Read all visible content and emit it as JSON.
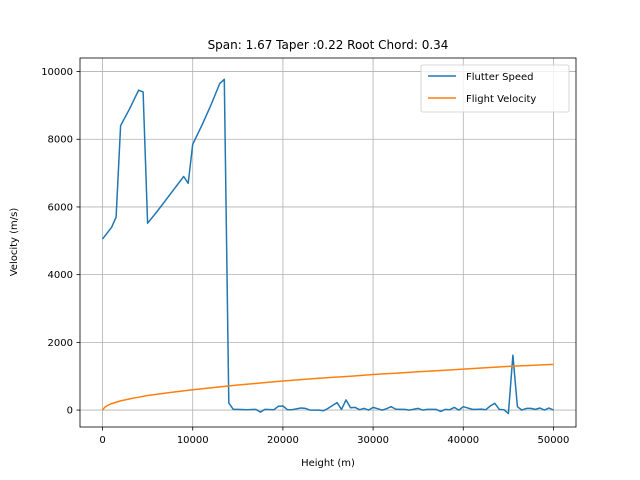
{
  "chart_data": {
    "type": "line",
    "title": "Span: 1.67 Taper :0.22 Root Chord: 0.34",
    "xlabel": "Height (m)",
    "ylabel": "Velocity (m/s)",
    "xlim": [
      -2500,
      52500
    ],
    "ylim": [
      -500,
      10400
    ],
    "xticks": [
      0,
      10000,
      20000,
      30000,
      40000,
      50000
    ],
    "yticks": [
      0,
      2000,
      4000,
      6000,
      8000,
      10000
    ],
    "grid": true,
    "legend_position": "top-right",
    "series": [
      {
        "name": "Flutter Speed",
        "color": "#1f77b4",
        "x": [
          0,
          1000,
          1500,
          2000,
          3000,
          4000,
          4500,
          5000,
          6000,
          7000,
          8000,
          9000,
          9500,
          10000,
          11000,
          12000,
          13000,
          13500,
          14000,
          14500,
          15000,
          16000,
          17000,
          17500,
          18000,
          19000,
          19500,
          20000,
          20500,
          21000,
          22000,
          22500,
          23000,
          24000,
          24500,
          25000,
          26000,
          26500,
          27000,
          27500,
          28000,
          28500,
          29000,
          29500,
          30000,
          30500,
          31000,
          31500,
          32000,
          32500,
          33000,
          33500,
          34000,
          35000,
          35500,
          36000,
          37000,
          37500,
          38000,
          38500,
          39000,
          39500,
          40000,
          41000,
          41500,
          42000,
          42500,
          43000,
          43500,
          44000,
          44500,
          45000,
          45500,
          46000,
          46500,
          47000,
          47500,
          48000,
          48500,
          49000,
          49500,
          50000
        ],
        "y": [
          5050,
          5400,
          5700,
          8400,
          8900,
          9450,
          9400,
          5520,
          5850,
          6200,
          6550,
          6900,
          6700,
          7850,
          8400,
          9000,
          9650,
          9770,
          210,
          20,
          20,
          10,
          20,
          -60,
          20,
          10,
          110,
          120,
          10,
          10,
          60,
          50,
          0,
          0,
          -20,
          50,
          220,
          20,
          300,
          70,
          80,
          10,
          50,
          0,
          80,
          40,
          0,
          40,
          100,
          30,
          20,
          20,
          0,
          50,
          0,
          20,
          20,
          -40,
          20,
          10,
          80,
          0,
          100,
          20,
          20,
          30,
          10,
          120,
          200,
          20,
          10,
          -100,
          1620,
          100,
          0,
          50,
          50,
          20,
          60,
          0,
          60,
          0
        ]
      },
      {
        "name": "Flight Velocity",
        "color": "#ff7f0e",
        "x": [
          0,
          250,
          500,
          1000,
          2000,
          3000,
          4000,
          5000,
          7500,
          10000,
          12500,
          15000,
          17500,
          20000,
          22500,
          25000,
          27500,
          30000,
          32500,
          35000,
          37500,
          40000,
          42500,
          45000,
          47500,
          50000
        ],
        "y": [
          0,
          85,
          130,
          190,
          270,
          330,
          380,
          430,
          520,
          600,
          670,
          740,
          800,
          860,
          910,
          960,
          1000,
          1050,
          1090,
          1130,
          1170,
          1210,
          1250,
          1290,
          1320,
          1350
        ]
      }
    ]
  }
}
